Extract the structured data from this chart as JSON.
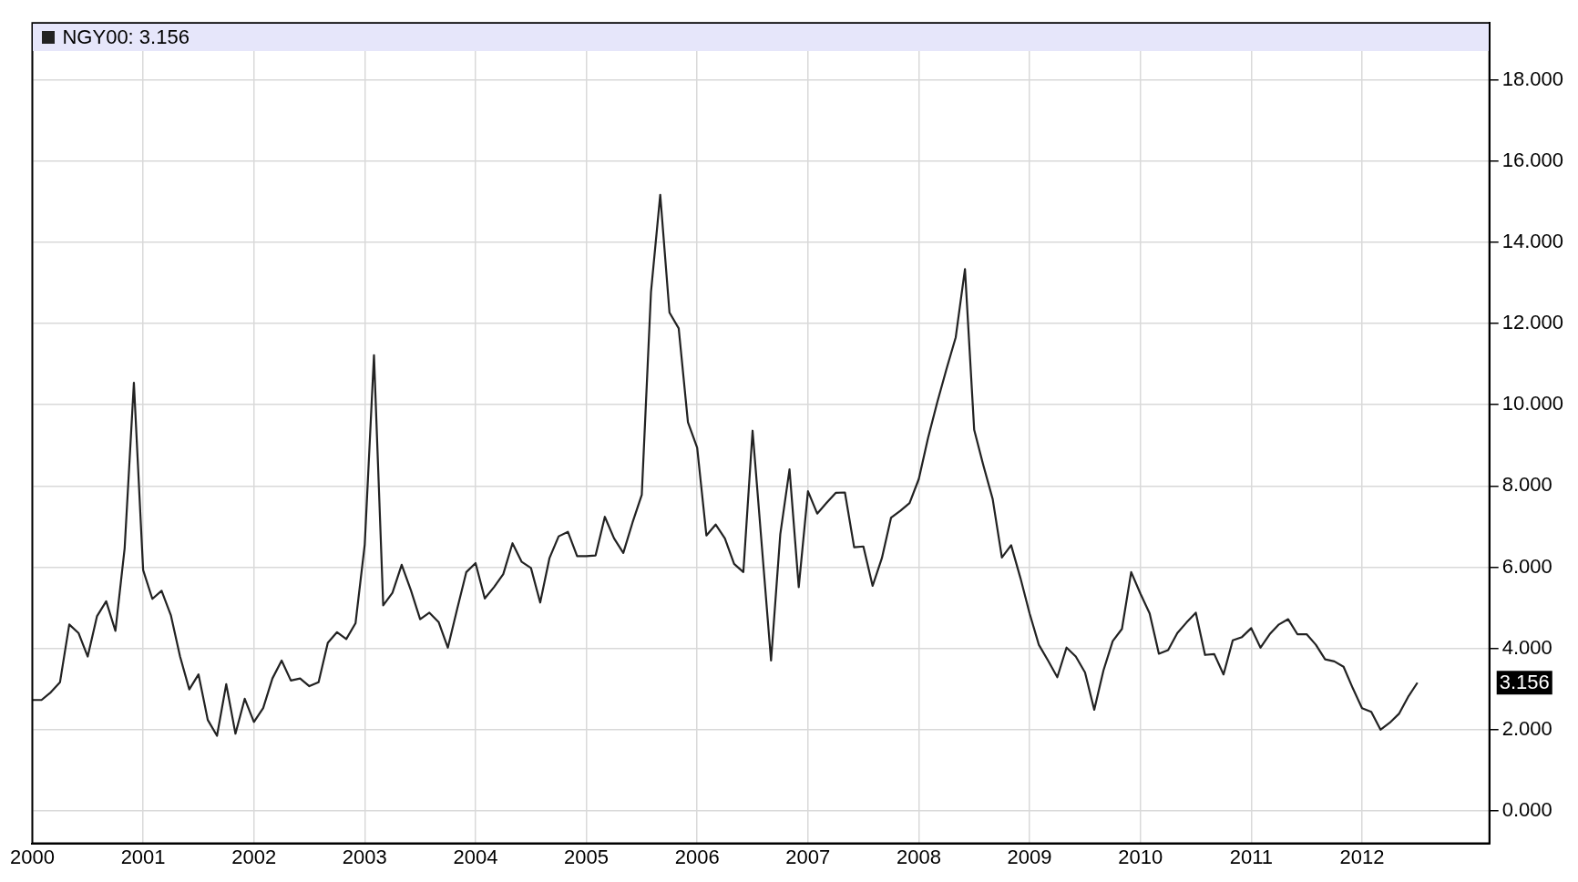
{
  "chart_data": {
    "type": "line",
    "legend": "top left",
    "grid": true,
    "marker": "none",
    "line_style": "solid",
    "xlim": [
      "2000-01",
      "2013-02-25"
    ],
    "ylim": [
      -0.8,
      19.4
    ],
    "xticks": [
      "2000",
      "2001",
      "2002",
      "2003",
      "2004",
      "2005",
      "2006",
      "2007",
      "2008",
      "2009",
      "2010",
      "2011",
      "2012"
    ],
    "yticks": [
      {
        "value": 0,
        "label": "0.000"
      },
      {
        "value": 2,
        "label": "2.000"
      },
      {
        "value": 4,
        "label": "4.000"
      },
      {
        "value": 6,
        "label": "6.000"
      },
      {
        "value": 8,
        "label": "8.000"
      },
      {
        "value": 10,
        "label": "10.000"
      },
      {
        "value": 12,
        "label": "12.000"
      },
      {
        "value": 14,
        "label": "14.000"
      },
      {
        "value": 16,
        "label": "16.000"
      },
      {
        "value": 18,
        "label": "18.000"
      }
    ],
    "annotations": [
      "3.156"
    ],
    "series": [
      {
        "name": "NGY00: 3.156",
        "color": "#222222",
        "x": [
          "2000-01",
          "2000-02",
          "2000-03",
          "2000-04",
          "2000-05",
          "2000-06",
          "2000-07",
          "2000-08",
          "2000-09",
          "2000-10",
          "2000-11",
          "2000-12",
          "2001-01",
          "2001-02",
          "2001-03",
          "2001-04",
          "2001-05",
          "2001-06",
          "2001-07",
          "2001-08",
          "2001-09",
          "2001-10",
          "2001-11",
          "2001-12",
          "2002-01",
          "2002-02",
          "2002-03",
          "2002-04",
          "2002-05",
          "2002-06",
          "2002-07",
          "2002-08",
          "2002-09",
          "2002-10",
          "2002-11",
          "2002-12",
          "2003-01",
          "2003-02",
          "2003-03",
          "2003-04",
          "2003-05",
          "2003-06",
          "2003-07",
          "2003-08",
          "2003-09",
          "2003-10",
          "2003-11",
          "2003-12",
          "2004-01",
          "2004-02",
          "2004-03",
          "2004-04",
          "2004-05",
          "2004-06",
          "2004-07",
          "2004-08",
          "2004-09",
          "2004-10",
          "2004-11",
          "2004-12",
          "2005-01",
          "2005-02",
          "2005-03",
          "2005-04",
          "2005-05",
          "2005-06",
          "2005-07",
          "2005-08",
          "2005-09",
          "2005-10",
          "2005-11",
          "2005-12",
          "2006-01",
          "2006-02",
          "2006-03",
          "2006-04",
          "2006-05",
          "2006-06",
          "2006-07",
          "2006-09",
          "2006-10",
          "2006-11",
          "2006-12",
          "2007-01",
          "2007-02",
          "2007-03",
          "2007-04",
          "2007-05",
          "2007-06",
          "2007-07",
          "2007-08",
          "2007-09",
          "2007-10",
          "2007-11",
          "2007-12",
          "2008-01",
          "2008-02",
          "2008-03",
          "2008-04",
          "2008-05",
          "2008-06",
          "2008-07",
          "2008-08",
          "2008-09",
          "2008-10",
          "2008-11",
          "2008-12",
          "2009-01",
          "2009-02",
          "2009-03",
          "2009-04",
          "2009-05",
          "2009-06",
          "2009-07",
          "2009-08",
          "2009-09",
          "2009-10",
          "2009-11",
          "2009-12",
          "2010-01",
          "2010-02",
          "2010-03",
          "2010-04",
          "2010-05",
          "2010-06",
          "2010-07",
          "2010-08",
          "2010-09",
          "2010-10",
          "2010-11",
          "2010-12",
          "2011-01",
          "2011-02",
          "2011-03",
          "2011-04",
          "2011-05",
          "2011-06",
          "2011-07",
          "2011-08",
          "2011-09",
          "2011-10",
          "2011-11",
          "2011-12",
          "2012-01",
          "2012-02",
          "2012-03",
          "2012-04",
          "2012-05",
          "2012-06",
          "2012-07"
        ],
        "values": [
          2.73,
          2.73,
          2.92,
          3.17,
          4.59,
          4.38,
          3.8,
          4.79,
          5.16,
          4.43,
          6.47,
          10.54,
          5.93,
          5.22,
          5.42,
          4.82,
          3.8,
          2.99,
          3.36,
          2.24,
          1.85,
          3.12,
          1.9,
          2.76,
          2.19,
          2.53,
          3.26,
          3.7,
          3.21,
          3.26,
          3.07,
          3.17,
          4.14,
          4.4,
          4.23,
          4.62,
          6.56,
          11.22,
          5.06,
          5.37,
          6.06,
          5.43,
          4.72,
          4.88,
          4.65,
          4.02,
          4.96,
          5.88,
          6.1,
          5.23,
          5.51,
          5.83,
          6.59,
          6.13,
          5.98,
          5.13,
          6.22,
          6.76,
          6.87,
          6.27,
          6.27,
          6.29,
          7.24,
          6.71,
          6.35,
          7.1,
          7.78,
          12.78,
          15.17,
          12.27,
          11.88,
          9.57,
          8.94,
          6.78,
          7.05,
          6.71,
          6.08,
          5.88,
          9.36,
          3.7,
          6.81,
          8.41,
          5.51,
          7.87,
          7.32,
          7.58,
          7.83,
          7.84,
          6.49,
          6.51,
          5.54,
          6.22,
          7.22,
          7.39,
          7.58,
          8.17,
          9.18,
          10.06,
          10.88,
          11.66,
          13.34,
          9.38,
          8.5,
          7.68,
          6.24,
          6.54,
          5.74,
          4.86,
          4.09,
          3.7,
          3.29,
          4.02,
          3.8,
          3.41,
          2.49,
          3.46,
          4.18,
          4.48,
          5.88,
          5.35,
          4.86,
          3.87,
          3.96,
          4.38,
          4.64,
          4.88,
          3.84,
          3.86,
          3.36,
          4.2,
          4.28,
          4.5,
          4.02,
          4.35,
          4.59,
          4.72,
          4.35,
          4.35,
          4.09,
          3.73,
          3.68,
          3.55,
          3.02,
          2.53,
          2.44,
          2.0,
          2.17,
          2.39,
          2.81,
          3.156
        ]
      }
    ]
  }
}
